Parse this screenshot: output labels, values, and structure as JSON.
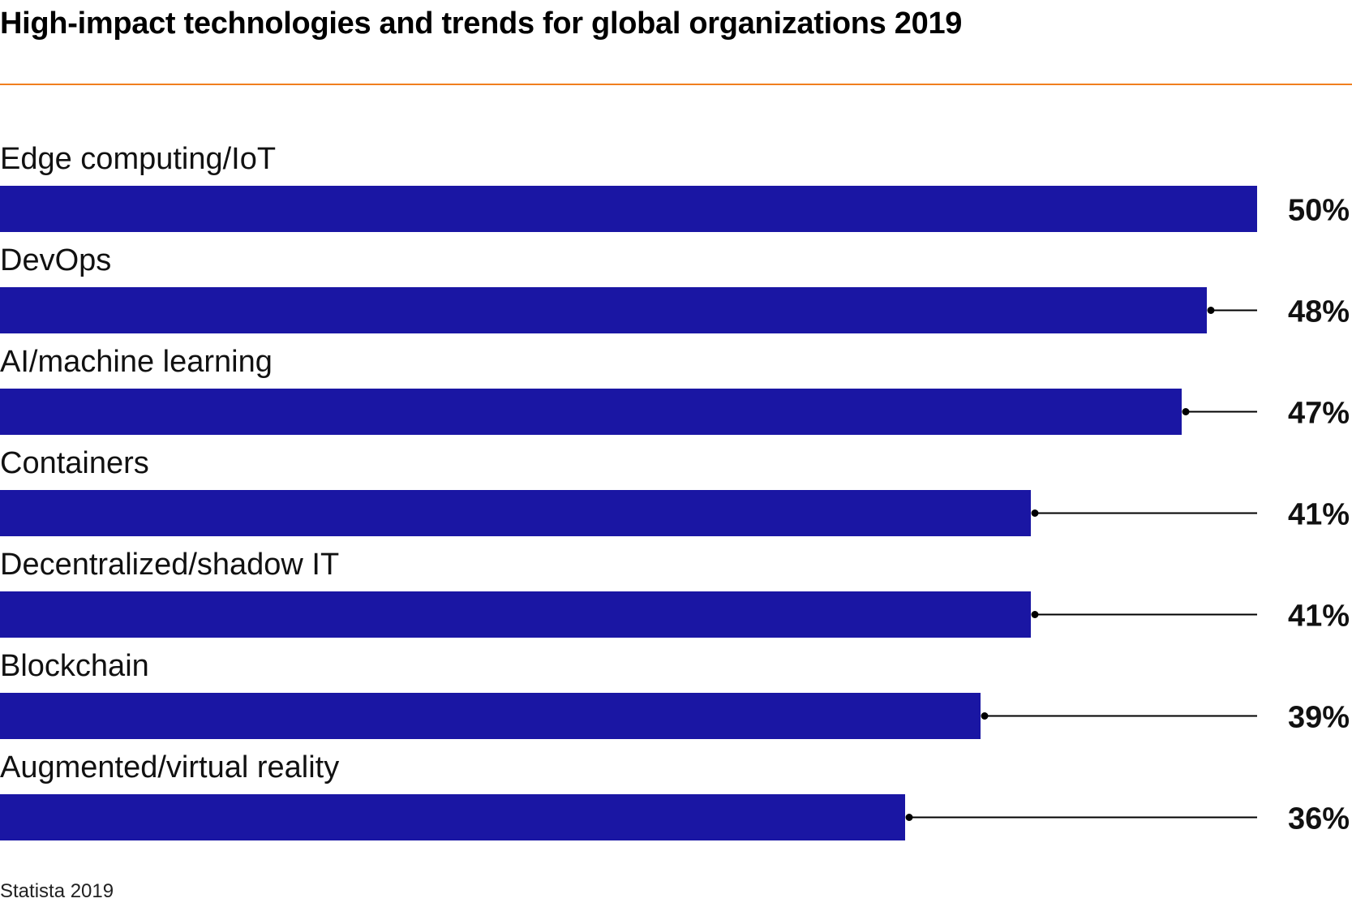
{
  "chart_data": {
    "type": "bar",
    "orientation": "horizontal",
    "title": "High-impact technologies and trends for global organizations 2019",
    "categories": [
      "Edge computing/IoT",
      "DevOps",
      "AI/machine learning",
      "Containers",
      "Decentralized/shadow IT",
      "Blockchain",
      "Augmented/virtual reality"
    ],
    "values": [
      50,
      48,
      47,
      41,
      41,
      39,
      36
    ],
    "value_labels": [
      "50%",
      "48%",
      "47%",
      "41%",
      "41%",
      "39%",
      "36%"
    ],
    "xlim": [
      0,
      50
    ],
    "unit": "%",
    "grid": false,
    "legend": "none",
    "source": "Statista 2019"
  },
  "colors": {
    "bar": "#1a16a3",
    "accent_rule": "#f07f1e",
    "leader_line": "#000000"
  }
}
